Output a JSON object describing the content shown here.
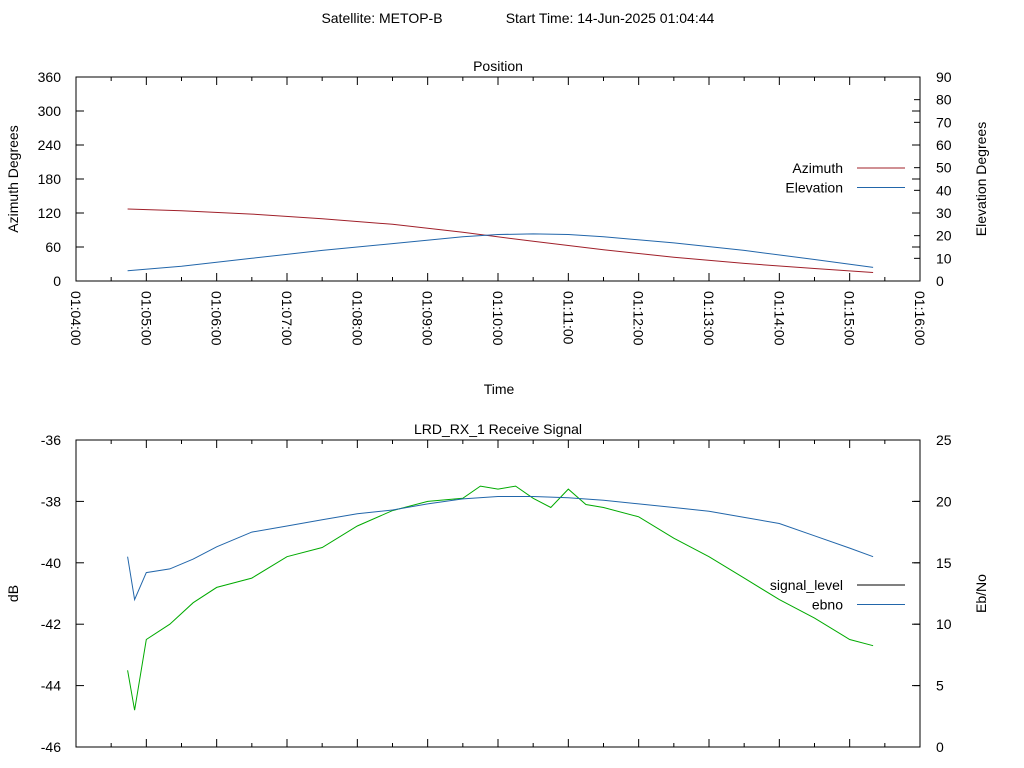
{
  "header": {
    "satellite": "Satellite: METOP-B",
    "start_time": "Start Time: 14-Jun-2025 01:04:44"
  },
  "colors": {
    "azimuth": "#a0202a",
    "elevation": "#2266aa",
    "signal_level": "#000000",
    "ebno": "#2266aa",
    "signal_trace": "#00aa00"
  },
  "chart_data": [
    {
      "type": "line",
      "title": "Position",
      "xlabel": "Time",
      "ylabel": "Azimuth Degrees",
      "y2label": "Elevation Degrees",
      "xlim": [
        "01:04:00",
        "01:16:00"
      ],
      "xticks": [
        "01:04:00",
        "01:05:00",
        "01:06:00",
        "01:07:00",
        "01:08:00",
        "01:09:00",
        "01:10:00",
        "01:11:00",
        "01:12:00",
        "01:13:00",
        "01:14:00",
        "01:15:00",
        "01:16:00"
      ],
      "ylim": [
        0,
        360
      ],
      "yticks": [
        0,
        60,
        120,
        180,
        240,
        300,
        360
      ],
      "y2lim": [
        0,
        90
      ],
      "y2ticks": [
        0,
        10,
        20,
        30,
        40,
        50,
        60,
        70,
        80,
        90
      ],
      "legend": "right",
      "grid": false,
      "series": [
        {
          "name": "Azimuth",
          "axis": "left",
          "x": [
            "01:04:44",
            "01:05:30",
            "01:06:30",
            "01:07:30",
            "01:08:30",
            "01:09:30",
            "01:10:30",
            "01:11:30",
            "01:12:30",
            "01:13:30",
            "01:14:30",
            "01:15:20"
          ],
          "values": [
            127,
            124,
            118,
            110,
            100,
            86,
            70,
            55,
            42,
            31,
            22,
            15
          ]
        },
        {
          "name": "Elevation",
          "axis": "right",
          "x": [
            "01:04:44",
            "01:05:30",
            "01:06:30",
            "01:07:30",
            "01:08:30",
            "01:09:30",
            "01:10:00",
            "01:10:30",
            "01:11:00",
            "01:11:30",
            "01:12:30",
            "01:13:30",
            "01:14:30",
            "01:15:20"
          ],
          "values": [
            4.5,
            6.5,
            10,
            13.5,
            16.5,
            19.5,
            20.5,
            20.8,
            20.5,
            19.5,
            16.8,
            13.5,
            9.5,
            6
          ]
        }
      ]
    },
    {
      "type": "line",
      "title": "LRD_RX_1 Receive Signal",
      "xlabel": "",
      "ylabel": "dB",
      "y2label": "Eb/No",
      "xlim": [
        "01:04:00",
        "01:16:00"
      ],
      "ylim": [
        -46,
        -36
      ],
      "yticks": [
        -46,
        -44,
        -42,
        -40,
        -38,
        -36
      ],
      "y2lim": [
        0,
        25
      ],
      "y2ticks": [
        0,
        5,
        10,
        15,
        20,
        25
      ],
      "legend": "right",
      "grid": false,
      "series": [
        {
          "name": "signal_level",
          "axis": "left",
          "x": [
            "01:04:44",
            "01:04:50",
            "01:05:00",
            "01:05:20",
            "01:05:40",
            "01:06:00",
            "01:06:30",
            "01:07:00",
            "01:07:30",
            "01:08:00",
            "01:08:30",
            "01:09:00",
            "01:09:30",
            "01:09:45",
            "01:10:00",
            "01:10:15",
            "01:10:30",
            "01:10:45",
            "01:11:00",
            "01:11:15",
            "01:11:30",
            "01:12:00",
            "01:12:30",
            "01:13:00",
            "01:13:30",
            "01:14:00",
            "01:14:30",
            "01:15:00",
            "01:15:20"
          ],
          "values": [
            -43.5,
            -44.8,
            -42.5,
            -42.0,
            -41.3,
            -40.8,
            -40.5,
            -39.8,
            -39.5,
            -38.8,
            -38.3,
            -38.0,
            -37.9,
            -37.5,
            -37.6,
            -37.5,
            -37.9,
            -38.2,
            -37.6,
            -38.1,
            -38.2,
            -38.5,
            -39.2,
            -39.8,
            -40.5,
            -41.2,
            -41.8,
            -42.5,
            -42.7
          ]
        },
        {
          "name": "ebno",
          "axis": "right",
          "x": [
            "01:04:44",
            "01:04:50",
            "01:05:00",
            "01:05:20",
            "01:05:40",
            "01:06:00",
            "01:06:30",
            "01:07:00",
            "01:07:30",
            "01:08:00",
            "01:08:30",
            "01:09:00",
            "01:09:30",
            "01:10:00",
            "01:10:30",
            "01:11:00",
            "01:11:30",
            "01:12:00",
            "01:12:30",
            "01:13:00",
            "01:13:30",
            "01:14:00",
            "01:14:30",
            "01:15:00",
            "01:15:20"
          ],
          "values": [
            15.5,
            12,
            14.2,
            14.5,
            15.3,
            16.3,
            17.5,
            18.0,
            18.5,
            19.0,
            19.3,
            19.8,
            20.2,
            20.4,
            20.4,
            20.3,
            20.1,
            19.8,
            19.5,
            19.2,
            18.7,
            18.2,
            17.2,
            16.2,
            15.5
          ]
        }
      ]
    }
  ]
}
